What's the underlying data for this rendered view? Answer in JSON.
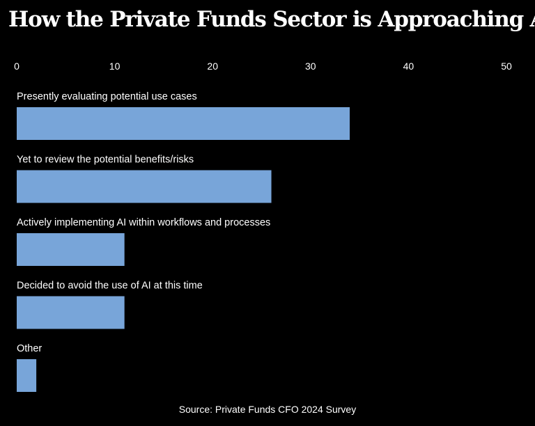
{
  "title": "How the Private Funds Sector is Approaching AI",
  "source": "Source: Private Funds CFO 2024 Survey",
  "colors": {
    "background": "#000000",
    "bar": "#78a5d9",
    "text": "#ffffff"
  },
  "chart_data": {
    "type": "bar",
    "orientation": "horizontal",
    "title": "How the Private Funds Sector is Approaching AI",
    "xlim": [
      0,
      50
    ],
    "xticks": [
      "0",
      "10",
      "20",
      "30",
      "40",
      "50"
    ],
    "tick_values": [
      0,
      10,
      20,
      30,
      40,
      50
    ],
    "axis_position": "top",
    "grid": false,
    "categories": [
      "Presently evaluating potential use cases",
      "Yet to review the potential benefits/risks",
      "Actively implementing AI within workflows and processes",
      "Decided to avoid the use of AI at this time",
      "Other"
    ],
    "values": [
      34,
      26,
      11,
      11,
      2
    ]
  }
}
